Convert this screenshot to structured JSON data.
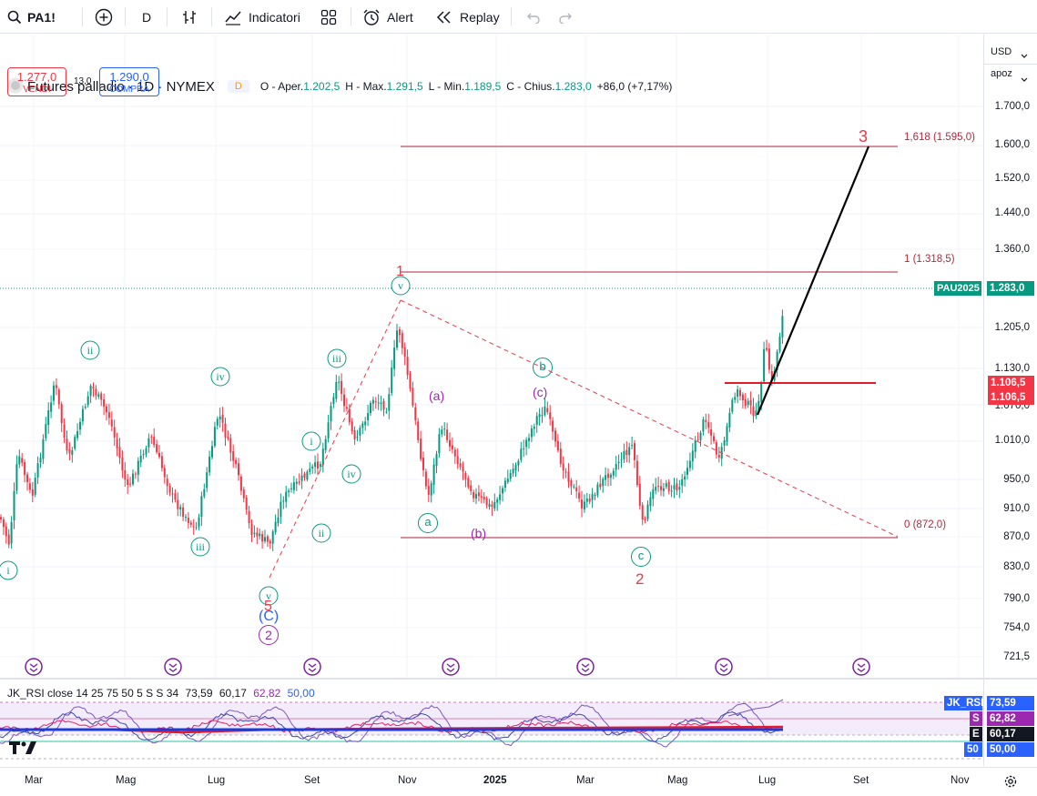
{
  "toolbar": {
    "symbol": "PA1!",
    "interval": "D",
    "indicators_label": "Indicatori",
    "alert_label": "Alert",
    "replay_label": "Replay"
  },
  "legend": {
    "title": "Futures palladio · 1D · NYMEX",
    "open_label": "O - Aper.",
    "open": "1.202,5",
    "high_label": "H - Max.",
    "high": "1.291,5",
    "low_label": "L - Min.",
    "low": "1.189,5",
    "close_label": "C - Chius.",
    "close": "1.283,0",
    "change": "+86,0 (+7,17%)",
    "badge": "D"
  },
  "trade": {
    "sell_price": "1.277,0",
    "sell_label": "VENDI",
    "spread": "13,0",
    "buy_price": "1.290,0",
    "buy_label": "COMPRA"
  },
  "price_axis": {
    "currency": "USD",
    "scale_mode": "apoz",
    "ticks": [
      "1.700,0",
      "1.600,0",
      "1.520,0",
      "1.440,0",
      "1.360,0",
      "1.205,0",
      "1.130,0",
      "1.070,0",
      "1.010,0",
      "950,0",
      "910,0",
      "870,0",
      "830,0",
      "790,0",
      "754,0",
      "721,5"
    ],
    "last_price_tag": "1.283,0",
    "symbol_tag": "PAU2025",
    "level_tag_1": "1.106,5",
    "level_tag_2": "1.106,5"
  },
  "fib": {
    "level_1618": "1,618 (1.595,0)",
    "level_1": "1 (1.318,5)",
    "level_0": "0 (872,0)"
  },
  "waves": {
    "major": [
      "1",
      "2",
      "3",
      "5"
    ],
    "minor_roman": [
      "i",
      "ii",
      "iii",
      "iv",
      "v",
      "i",
      "ii",
      "iii",
      "iv",
      "v"
    ],
    "abc_circle": [
      "a",
      "b",
      "c"
    ],
    "abc_paren": [
      "(a)",
      "(b)",
      "(c)"
    ],
    "big_c": "(C)",
    "circled_2": "2"
  },
  "rsi": {
    "title": "JK_RSI close 14 25 75 50 5 S S 34",
    "v1": "73,59",
    "v2": "60,17",
    "v3": "62,82",
    "v4": "50,00",
    "axis_tags": [
      {
        "label": "JK_RSI",
        "value": "73,59",
        "color": "#2962ff"
      },
      {
        "label": "S",
        "value": "62,82",
        "color": "#9c27b0"
      },
      {
        "label": "E",
        "value": "60,17",
        "color": "#131722"
      },
      {
        "label": "50",
        "value": "50,00",
        "color": "#2962ff"
      }
    ]
  },
  "time_axis": {
    "labels": [
      "Mar",
      "Mag",
      "Lug",
      "Set",
      "Nov",
      "2025",
      "Mar",
      "Mag",
      "Lug",
      "Set",
      "Nov"
    ]
  },
  "colors": {
    "up": "#089981",
    "down": "#f23645",
    "fib": "#b2283c",
    "wave_green": "#089981",
    "wave_purple": "#9c27b0",
    "wave_red": "#f23645",
    "rsi_blue": "#2962ff"
  }
}
